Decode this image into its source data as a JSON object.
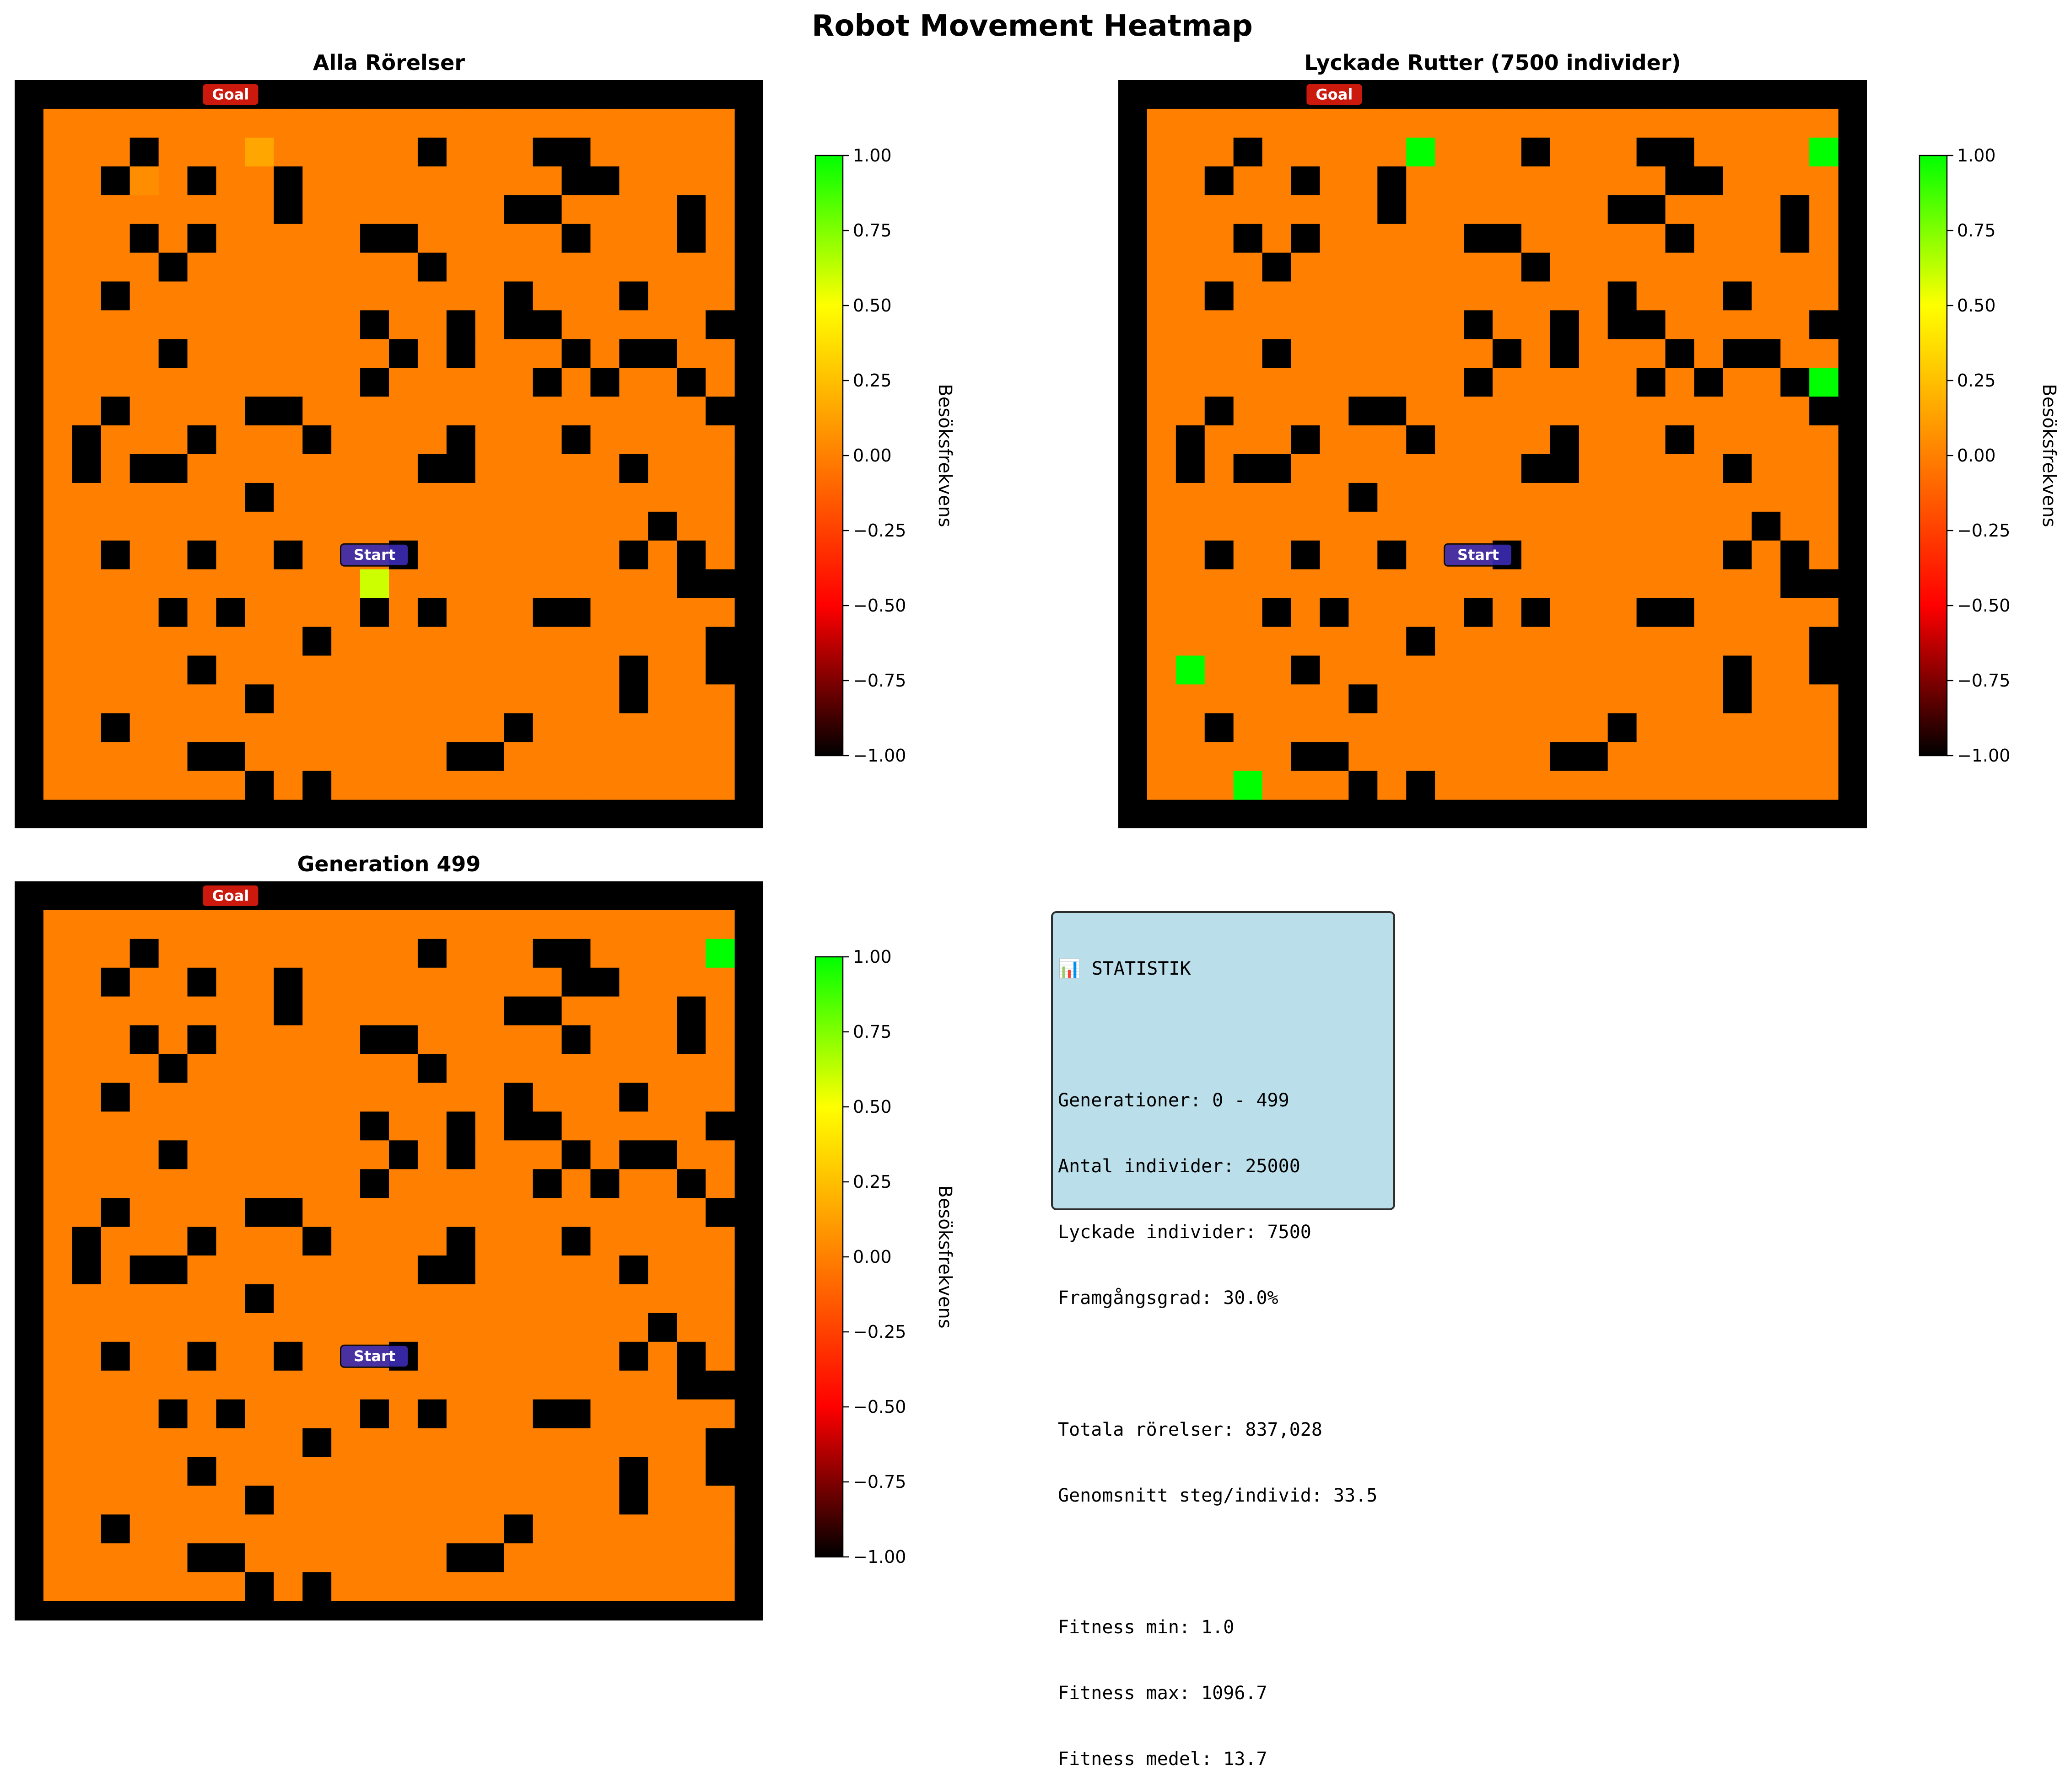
{
  "figure_title": "Robot Movement Heatmap",
  "colors": {
    "wall": "#000000",
    "cmap": [
      "#000000",
      "#ff0000",
      "#ff8000",
      "#ffff00",
      "#00ff00"
    ],
    "goal_marker": "#dd1c0f",
    "start_marker": "#3a2bb0",
    "stats_background": "#add8e6"
  },
  "grid": {
    "size": 24,
    "walls": [
      [
        0,
        0,
        0,
        0,
        0,
        0,
        0,
        0,
        0,
        0,
        0,
        0,
        0,
        0,
        0,
        0,
        0,
        0,
        0,
        0,
        0,
        0,
        0,
        0
      ],
      [
        0,
        0,
        0,
        1,
        0,
        0,
        0,
        0,
        0,
        0,
        0,
        0,
        0,
        1,
        0,
        0,
        0,
        1,
        1,
        0,
        0,
        0,
        0,
        0
      ],
      [
        0,
        0,
        1,
        0,
        0,
        1,
        0,
        0,
        1,
        0,
        0,
        0,
        0,
        0,
        0,
        0,
        0,
        0,
        1,
        1,
        0,
        0,
        0,
        0
      ],
      [
        0,
        0,
        0,
        0,
        0,
        0,
        0,
        0,
        1,
        0,
        0,
        0,
        0,
        0,
        0,
        0,
        1,
        1,
        0,
        0,
        0,
        0,
        1,
        0
      ],
      [
        0,
        0,
        0,
        1,
        0,
        1,
        0,
        0,
        0,
        0,
        0,
        1,
        1,
        0,
        0,
        0,
        0,
        0,
        1,
        0,
        0,
        0,
        1,
        0
      ],
      [
        0,
        0,
        0,
        0,
        1,
        0,
        0,
        0,
        0,
        0,
        0,
        0,
        0,
        1,
        0,
        0,
        0,
        0,
        0,
        0,
        0,
        0,
        0,
        0
      ],
      [
        0,
        0,
        1,
        0,
        0,
        0,
        0,
        0,
        0,
        0,
        0,
        0,
        0,
        0,
        0,
        0,
        1,
        0,
        0,
        0,
        1,
        0,
        0,
        0
      ],
      [
        0,
        0,
        0,
        0,
        0,
        0,
        0,
        0,
        0,
        0,
        0,
        1,
        0,
        0,
        1,
        0,
        1,
        1,
        0,
        0,
        0,
        0,
        0,
        1
      ],
      [
        0,
        0,
        0,
        0,
        1,
        0,
        0,
        0,
        0,
        0,
        0,
        0,
        1,
        0,
        1,
        0,
        0,
        0,
        1,
        0,
        1,
        1,
        0,
        0
      ],
      [
        0,
        0,
        0,
        0,
        0,
        0,
        0,
        0,
        0,
        0,
        0,
        1,
        0,
        0,
        0,
        0,
        0,
        1,
        0,
        1,
        0,
        0,
        1,
        0
      ],
      [
        0,
        0,
        1,
        0,
        0,
        0,
        0,
        1,
        1,
        0,
        0,
        0,
        0,
        0,
        0,
        0,
        0,
        0,
        0,
        0,
        0,
        0,
        0,
        1
      ],
      [
        0,
        1,
        0,
        0,
        0,
        1,
        0,
        0,
        0,
        1,
        0,
        0,
        0,
        0,
        1,
        0,
        0,
        0,
        1,
        0,
        0,
        0,
        0,
        0
      ],
      [
        0,
        1,
        0,
        1,
        1,
        0,
        0,
        0,
        0,
        0,
        0,
        0,
        0,
        1,
        1,
        0,
        0,
        0,
        0,
        0,
        1,
        0,
        0,
        0
      ],
      [
        0,
        0,
        0,
        0,
        0,
        0,
        0,
        1,
        0,
        0,
        0,
        0,
        0,
        0,
        0,
        0,
        0,
        0,
        0,
        0,
        0,
        0,
        0,
        0
      ],
      [
        0,
        0,
        0,
        0,
        0,
        0,
        0,
        0,
        0,
        0,
        0,
        0,
        0,
        0,
        0,
        0,
        0,
        0,
        0,
        0,
        0,
        1,
        0,
        0
      ],
      [
        0,
        0,
        1,
        0,
        0,
        1,
        0,
        0,
        1,
        0,
        0,
        0,
        1,
        0,
        0,
        0,
        0,
        0,
        0,
        0,
        1,
        0,
        1,
        0
      ],
      [
        0,
        0,
        0,
        0,
        0,
        0,
        0,
        0,
        0,
        0,
        0,
        0,
        0,
        0,
        0,
        0,
        0,
        0,
        0,
        0,
        0,
        0,
        1,
        1
      ],
      [
        0,
        0,
        0,
        0,
        1,
        0,
        1,
        0,
        0,
        0,
        0,
        1,
        0,
        1,
        0,
        0,
        0,
        1,
        1,
        0,
        0,
        0,
        0,
        0
      ],
      [
        0,
        0,
        0,
        0,
        0,
        0,
        0,
        0,
        0,
        1,
        0,
        0,
        0,
        0,
        0,
        0,
        0,
        0,
        0,
        0,
        0,
        0,
        0,
        1
      ],
      [
        0,
        0,
        0,
        0,
        0,
        1,
        0,
        0,
        0,
        0,
        0,
        0,
        0,
        0,
        0,
        0,
        0,
        0,
        0,
        0,
        1,
        0,
        0,
        1
      ],
      [
        0,
        0,
        0,
        0,
        0,
        0,
        0,
        1,
        0,
        0,
        0,
        0,
        0,
        0,
        0,
        0,
        0,
        0,
        0,
        0,
        1,
        0,
        0,
        0
      ],
      [
        0,
        0,
        1,
        0,
        0,
        0,
        0,
        0,
        0,
        0,
        0,
        0,
        0,
        0,
        0,
        0,
        1,
        0,
        0,
        0,
        0,
        0,
        0,
        0
      ],
      [
        0,
        0,
        0,
        0,
        0,
        1,
        1,
        0,
        0,
        0,
        0,
        0,
        0,
        0,
        1,
        1,
        0,
        0,
        0,
        0,
        0,
        0,
        0,
        0
      ],
      [
        0,
        0,
        0,
        0,
        0,
        0,
        0,
        1,
        0,
        1,
        0,
        0,
        0,
        0,
        0,
        0,
        0,
        0,
        0,
        0,
        0,
        0,
        0,
        0
      ]
    ]
  },
  "chart_data": [
    {
      "type": "heatmap",
      "title": "Alla Rörelser",
      "goal_label": "Goal",
      "start_label": "Start",
      "goal_cell": [
        6,
        0
      ],
      "start_cell": [
        11,
        16
      ],
      "colorbar": {
        "label": "Besöksfrekvens",
        "range": [
          -1.0,
          1.0
        ],
        "ticks": [
          "1.00",
          "0.75",
          "0.50",
          "0.25",
          "0.00",
          "−0.25",
          "−0.50",
          "−0.75",
          "−1.00"
        ]
      },
      "base_value": 0.0,
      "highlights": [
        {
          "cell": [
            7,
            1
          ],
          "value": 0.15
        },
        {
          "cell": [
            3,
            2
          ],
          "value": 0.05
        },
        {
          "cell": [
            11,
            16
          ],
          "value": 0.6
        }
      ]
    },
    {
      "type": "heatmap",
      "title": "Lyckade Rutter (7500 individer)",
      "goal_label": "Goal",
      "start_label": "Start",
      "goal_cell": [
        6,
        0
      ],
      "start_cell": [
        11,
        16
      ],
      "colorbar": {
        "label": "Besöksfrekvens",
        "range": [
          -1.0,
          1.0
        ],
        "ticks": [
          "1.00",
          "0.75",
          "0.50",
          "0.25",
          "0.00",
          "−0.25",
          "−0.50",
          "−0.75",
          "−1.00"
        ]
      },
      "base_value": 0.0,
      "highlights": [
        {
          "cell": [
            9,
            1
          ],
          "value": 1.0
        },
        {
          "cell": [
            23,
            1
          ],
          "value": 1.0
        },
        {
          "cell": [
            23,
            9
          ],
          "value": 1.0
        },
        {
          "cell": [
            1,
            19
          ],
          "value": 1.0
        },
        {
          "cell": [
            3,
            23
          ],
          "value": 1.0
        }
      ]
    },
    {
      "type": "heatmap",
      "title": "Generation 499",
      "goal_label": "Goal",
      "start_label": "Start",
      "goal_cell": [
        6,
        0
      ],
      "start_cell": [
        11,
        16
      ],
      "colorbar": {
        "label": "Besöksfrekvens",
        "range": [
          -1.0,
          1.0
        ],
        "ticks": [
          "1.00",
          "0.75",
          "0.50",
          "0.25",
          "0.00",
          "−0.25",
          "−0.50",
          "−0.75",
          "−1.00"
        ]
      },
      "base_value": 0.0,
      "highlights": [
        {
          "cell": [
            23,
            1
          ],
          "value": 1.0
        }
      ]
    }
  ],
  "statistics": {
    "heading": "📊 STATISTIK",
    "generations": "Generationer: 0 - 499",
    "individuals": "Antal individer: 25000",
    "successful": "Lyckade individer: 7500",
    "success_rate": "Framgångsgrad: 30.0%",
    "total_moves": "Totala rörelser: 837,028",
    "avg_steps": "Genomsnitt steg/individ: 33.5",
    "fitness_min": "Fitness min: 1.0",
    "fitness_max": "Fitness max: 1096.7",
    "fitness_mean": "Fitness medel: 13.7"
  }
}
